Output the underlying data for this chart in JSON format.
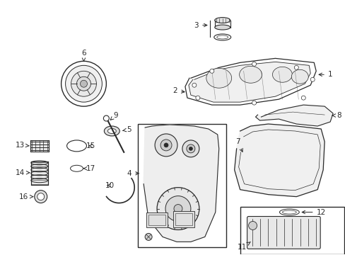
{
  "bg_color": "#ffffff",
  "lc": "#2a2a2a",
  "fig_width": 4.89,
  "fig_height": 3.6,
  "dpi": 100,
  "label_fs": 7.5,
  "arrow_lw": 0.7,
  "part_lw": 0.9
}
